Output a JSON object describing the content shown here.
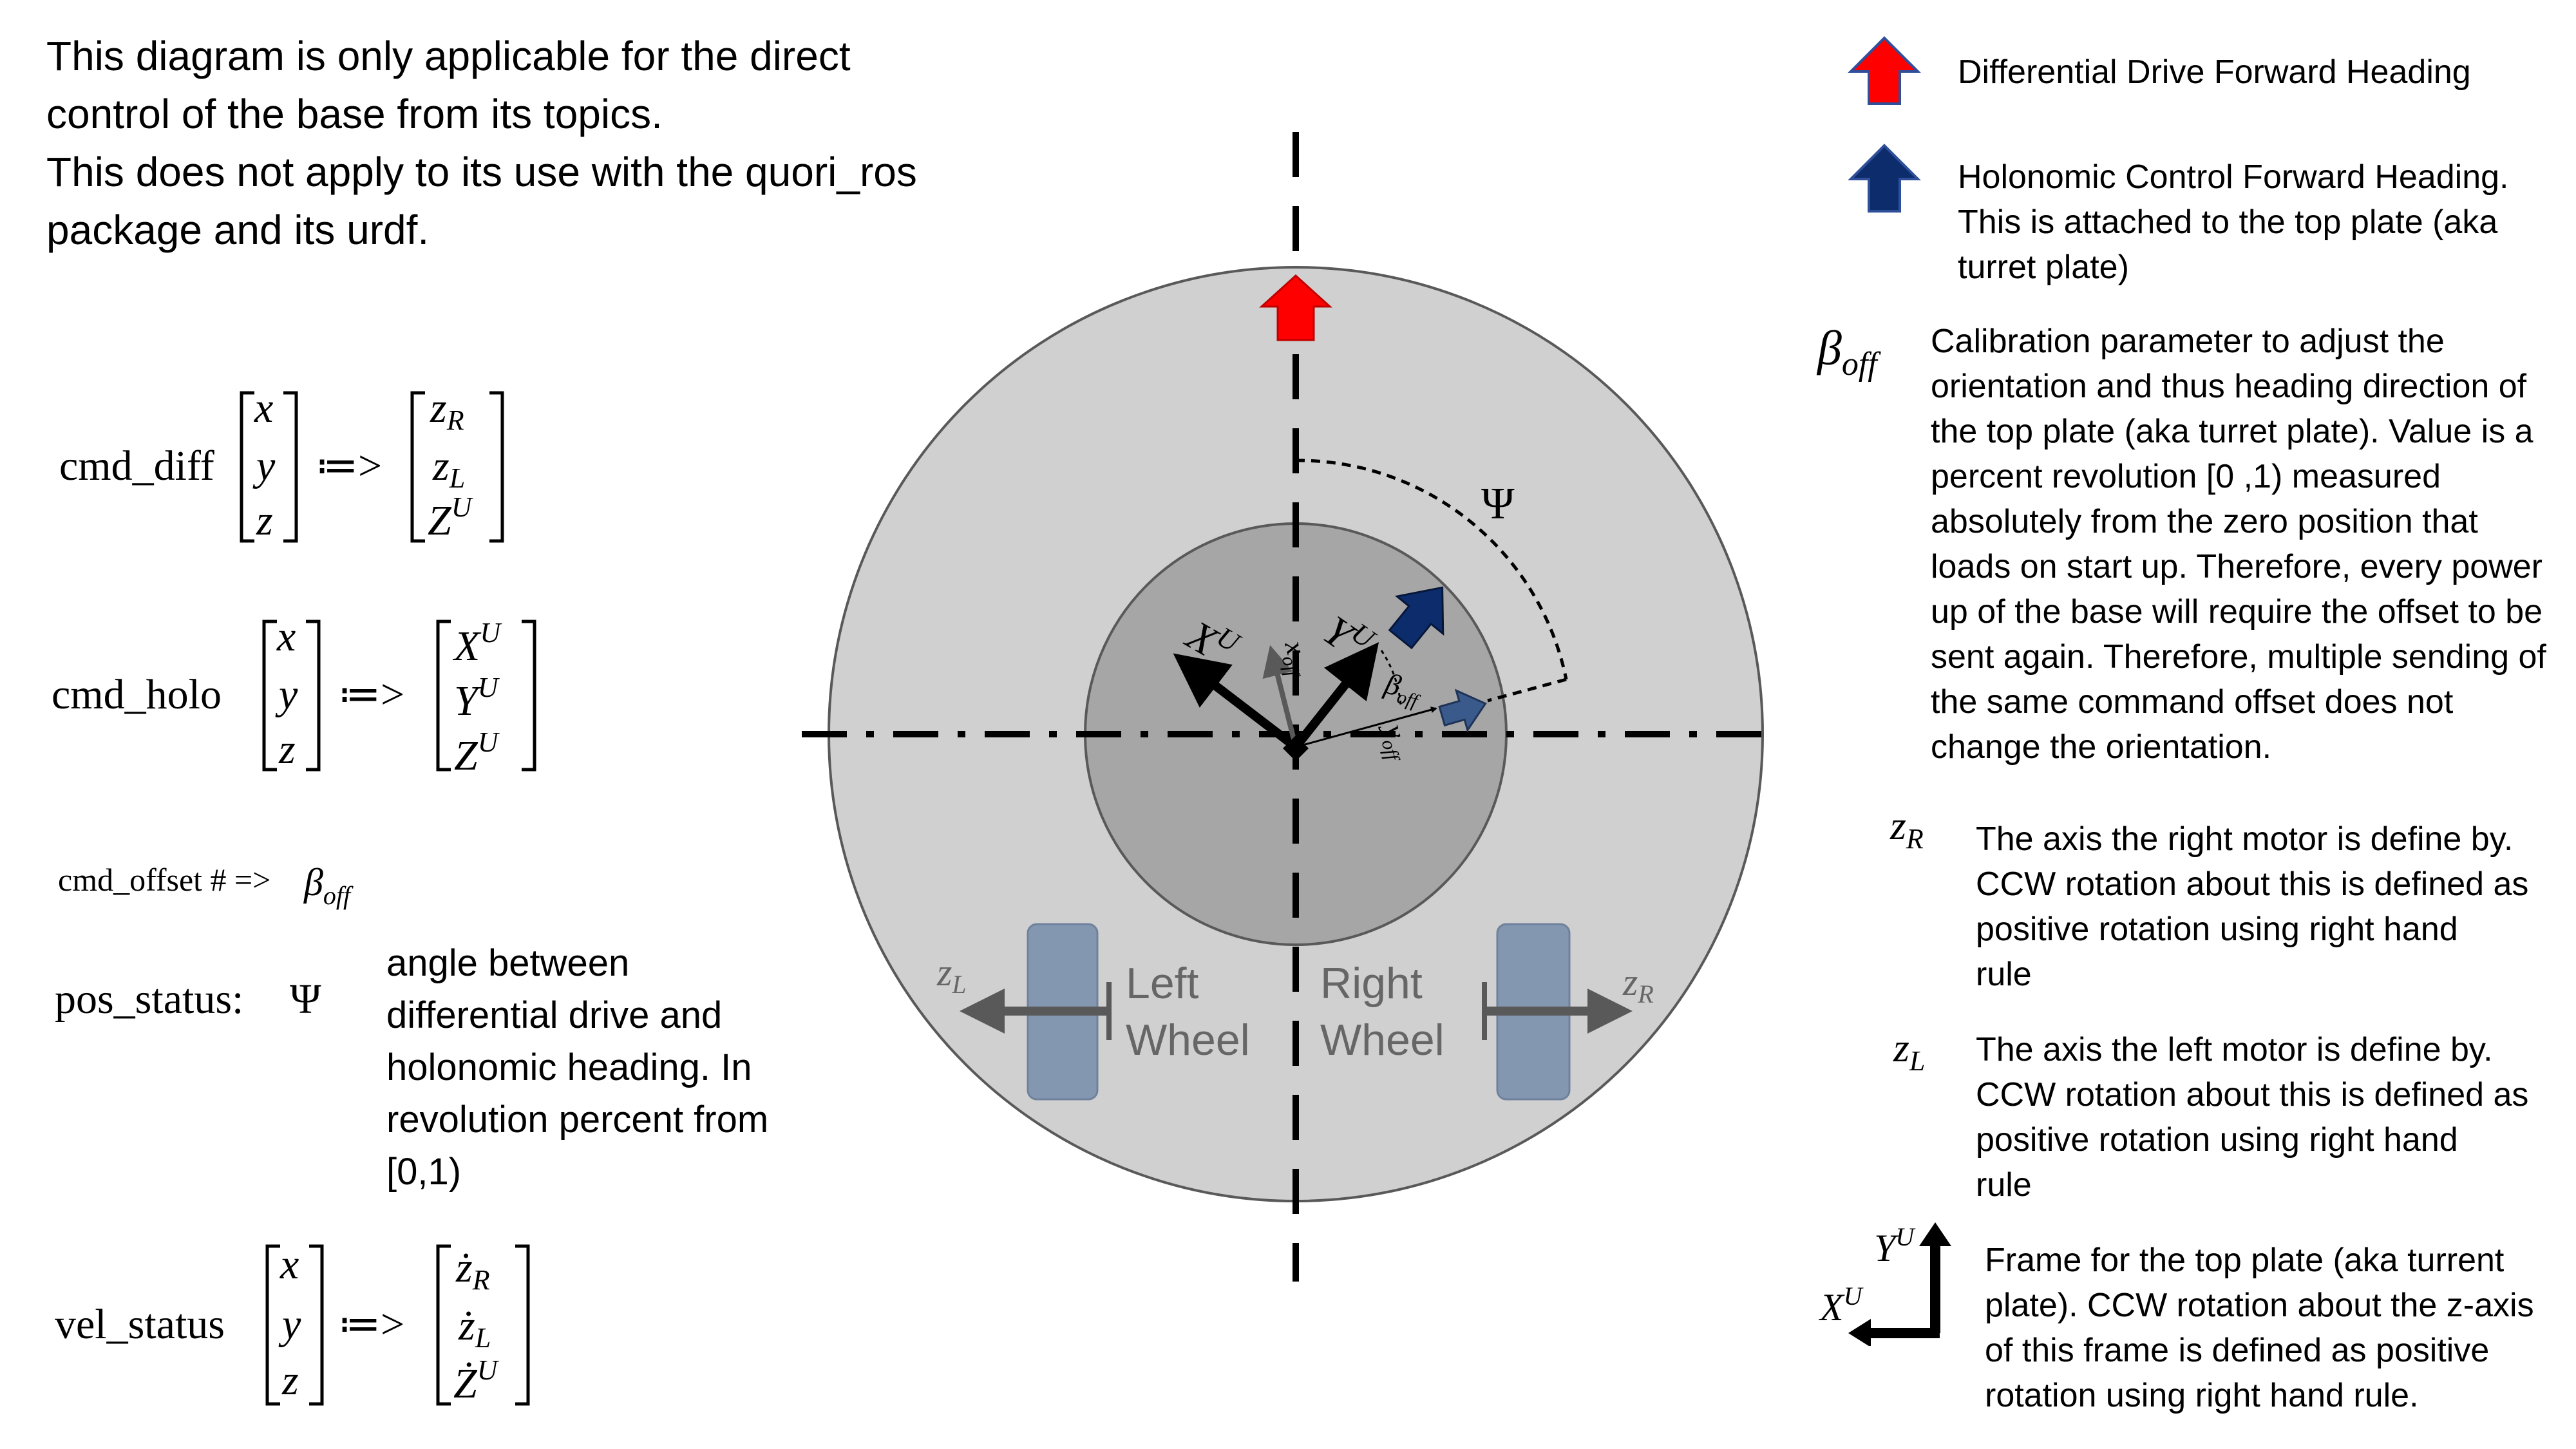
{
  "intro": {
    "line1": "This diagram is only applicable for the direct",
    "line2": "control of the base from its topics.",
    "line3": "This does not apply to its use with the quori_ros",
    "line4": "package and its urdf."
  },
  "commands": {
    "cmd_diff": {
      "name": "cmd_diff",
      "arrow": "≔>",
      "inputs": [
        "x",
        "y",
        "z"
      ],
      "outputs": [
        "zR",
        "zL",
        "ZU"
      ]
    },
    "cmd_holo": {
      "name": "cmd_holo",
      "arrow": "≔>",
      "inputs": [
        "x",
        "y",
        "z"
      ],
      "outputs": [
        "XU",
        "YU",
        "ZU"
      ]
    },
    "cmd_offset": {
      "name": "cmd_offset # =>",
      "symbol": "β",
      "sub": "off"
    },
    "pos_status": {
      "name": "pos_status:",
      "symbol": "Ψ",
      "desc": [
        "angle between",
        "differential drive and",
        "holonomic heading. In",
        "revolution percent from",
        "[0,1)"
      ]
    },
    "vel_status": {
      "name": "vel_status",
      "arrow": "≔>",
      "inputs": [
        "x",
        "y",
        "z"
      ],
      "outputs": [
        "żR",
        "żL",
        "ŻU"
      ]
    }
  },
  "diagram": {
    "psi_label": "Ψ",
    "left_wheel": [
      "Left",
      "Wheel"
    ],
    "right_wheel": [
      "Right",
      "Wheel"
    ],
    "colors": {
      "outer": "#d0d0d0",
      "inner": "#a6a6a6",
      "wheel": "#8497b0",
      "red": "#ff0000",
      "navy": "#0d2c6b",
      "gray_arrow": "#595959"
    }
  },
  "legend": {
    "diff_heading": "Differential Drive  Forward Heading",
    "holo_heading": [
      "Holonomic Control Forward Heading.",
      "This is attached to the top plate (aka",
      "turret plate)"
    ],
    "beta_off": [
      "Calibration parameter to adjust the",
      "orientation and thus heading direction of",
      "the top plate (aka turret plate). Value is a",
      "percent revolution [0 ,1) measured",
      "absolutely from the zero position that",
      "loads on start up. Therefore, every power",
      "up of the base will require the offset to be",
      "sent again. Therefore, multiple sending of",
      "the same command offset does not",
      "change the orientation."
    ],
    "z_r": [
      "The axis the right motor is define by.",
      "CCW rotation about this is defined as",
      "positive rotation using right hand",
      "rule"
    ],
    "z_l": [
      "The axis the left motor is define by.",
      "CCW rotation about this is defined as",
      "positive rotation using right hand",
      "rule"
    ],
    "frame": [
      "Frame for the top plate (aka turrent",
      "plate). CCW rotation about the z-axis",
      "of this frame is defined as positive",
      "rotation using right hand rule."
    ]
  }
}
